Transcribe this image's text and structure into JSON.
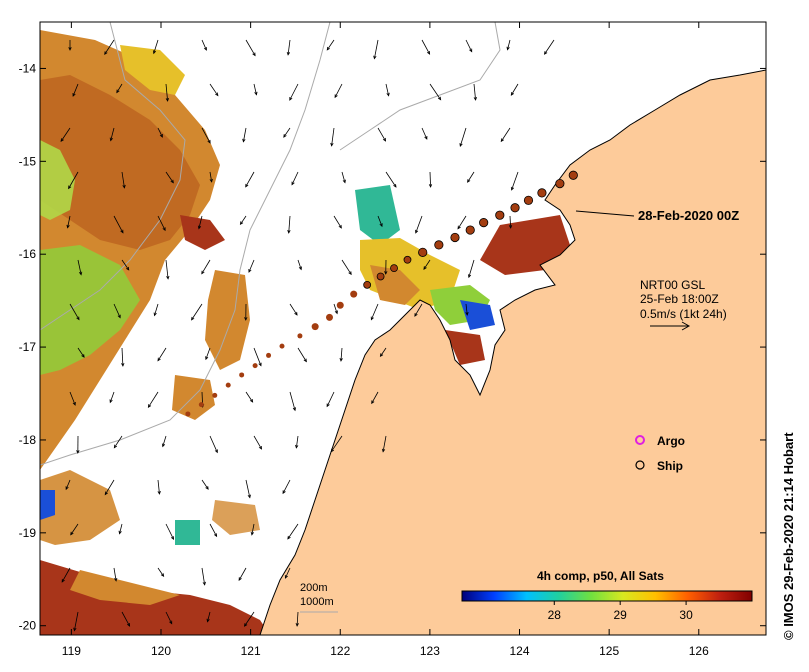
{
  "map": {
    "lon_ticks": [
      "119",
      "120",
      "121",
      "122",
      "123",
      "124",
      "125",
      "126"
    ],
    "lat_ticks": [
      "-14",
      "-15",
      "-16",
      "-17",
      "-18",
      "-19",
      "-20"
    ],
    "lon_range": [
      118.65,
      126.75
    ],
    "lat_range": [
      -20.1,
      -13.5
    ]
  },
  "colors": {
    "land": "#fdcb9a",
    "coast": "#000000",
    "bathy": "#aaaaaa",
    "track": "#a33d10",
    "sst_warm": "#d2882f",
    "sst_hot": "#a8351a",
    "sst_mid": "#e6c02a",
    "sst_green": "#8fcf3a",
    "sst_cool": "#30b896",
    "sst_cold": "#1a4fd8",
    "argo": "#e020e0"
  },
  "annotations": {
    "date_label": "28-Feb-2020 00Z",
    "current_title": "NRT00 GSL",
    "current_time": "25-Feb 18:00Z",
    "current_scale": "0.5m/s (1kt 24h)",
    "bathy_200": "200m",
    "bathy_1000": "1000m"
  },
  "legend": {
    "argo_label": "Argo",
    "ship_label": "Ship"
  },
  "colorbar": {
    "title": "4h comp, p50, All Sats",
    "tick_labels": [
      "28",
      "29",
      "30"
    ],
    "tick_values": [
      28,
      29,
      30
    ],
    "range": [
      26.6,
      31.0
    ],
    "stops": [
      "#00007a",
      "#0040ff",
      "#00c0ff",
      "#20d0a0",
      "#70e040",
      "#d8e820",
      "#ffc000",
      "#ff6000",
      "#c02010",
      "#800000"
    ]
  },
  "credit": "© IMOS 29-Feb-2020 21:14 Hobart",
  "track_points": [
    {
      "lon": 120.3,
      "lat": -17.72
    },
    {
      "lon": 120.45,
      "lat": -17.62
    },
    {
      "lon": 120.6,
      "lat": -17.52
    },
    {
      "lon": 120.75,
      "lat": -17.41
    },
    {
      "lon": 120.9,
      "lat": -17.3
    },
    {
      "lon": 121.05,
      "lat": -17.2
    },
    {
      "lon": 121.2,
      "lat": -17.09
    },
    {
      "lon": 121.35,
      "lat": -16.99
    },
    {
      "lon": 121.55,
      "lat": -16.88
    },
    {
      "lon": 121.72,
      "lat": -16.78
    },
    {
      "lon": 121.88,
      "lat": -16.68
    },
    {
      "lon": 122.0,
      "lat": -16.55
    },
    {
      "lon": 122.15,
      "lat": -16.43
    },
    {
      "lon": 122.3,
      "lat": -16.33
    },
    {
      "lon": 122.45,
      "lat": -16.24
    },
    {
      "lon": 122.6,
      "lat": -16.15
    },
    {
      "lon": 122.75,
      "lat": -16.06
    },
    {
      "lon": 122.92,
      "lat": -15.98
    },
    {
      "lon": 123.1,
      "lat": -15.9
    },
    {
      "lon": 123.28,
      "lat": -15.82
    },
    {
      "lon": 123.45,
      "lat": -15.74
    },
    {
      "lon": 123.6,
      "lat": -15.66
    },
    {
      "lon": 123.78,
      "lat": -15.58
    },
    {
      "lon": 123.95,
      "lat": -15.5
    },
    {
      "lon": 124.1,
      "lat": -15.42
    },
    {
      "lon": 124.25,
      "lat": -15.34
    },
    {
      "lon": 124.45,
      "lat": -15.24
    },
    {
      "lon": 124.6,
      "lat": -15.15
    }
  ]
}
